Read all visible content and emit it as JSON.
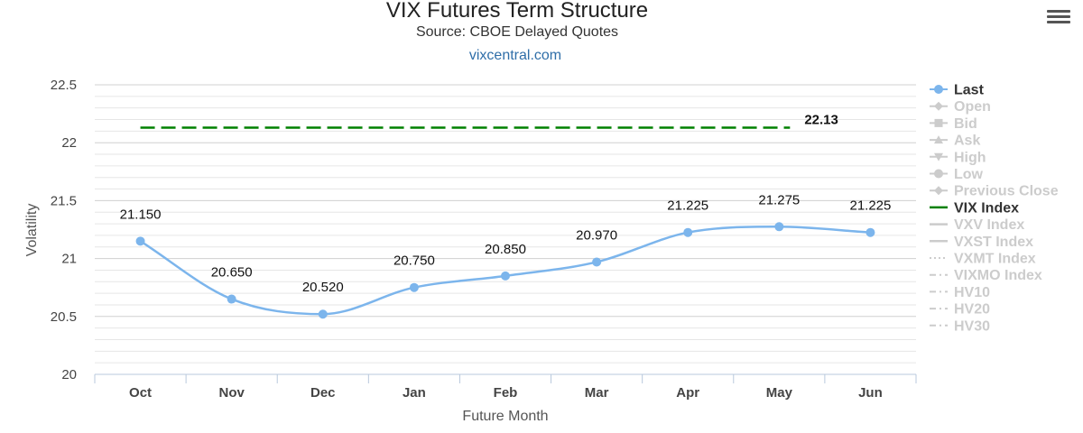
{
  "header": {
    "title": "VIX Futures Term Structure",
    "subtitle": "Source: CBOE Delayed Quotes",
    "link": "vixcentral.com"
  },
  "menu": {
    "icon": "hamburger-menu-icon"
  },
  "chart_data": {
    "type": "line",
    "title": "VIX Futures Term Structure",
    "subtitle": "Source: CBOE Delayed Quotes",
    "xlabel": "Future Month",
    "ylabel": "Volatility",
    "categories": [
      "Oct",
      "Nov",
      "Dec",
      "Jan",
      "Feb",
      "Mar",
      "Apr",
      "May",
      "Jun"
    ],
    "ylim": [
      20,
      22.5
    ],
    "yticks": [
      "22.5",
      "22",
      "21.5",
      "21",
      "20.5",
      "20"
    ],
    "grid": true,
    "legend_position": "right",
    "series": [
      {
        "name": "Last",
        "values": [
          21.15,
          20.65,
          20.52,
          20.75,
          20.85,
          20.97,
          21.225,
          21.275,
          21.225
        ],
        "labels": [
          "21.150",
          "20.650",
          "20.520",
          "20.750",
          "20.850",
          "20.970",
          "21.225",
          "21.275",
          "21.225"
        ],
        "color": "#7cb5ec",
        "style": "smooth-line-markers"
      },
      {
        "name": "VIX Index",
        "value": 22.13,
        "label": "22.13",
        "color": "#008000",
        "style": "dashed"
      }
    ],
    "legend": [
      {
        "name": "Last",
        "color": "#7cb5ec",
        "active": true,
        "symbol": "circle"
      },
      {
        "name": "Open",
        "color": "#cccccc",
        "active": false,
        "symbol": "diamond"
      },
      {
        "name": "Bid",
        "color": "#cccccc",
        "active": false,
        "symbol": "square"
      },
      {
        "name": "Ask",
        "color": "#cccccc",
        "active": false,
        "symbol": "triangle"
      },
      {
        "name": "High",
        "color": "#cccccc",
        "active": false,
        "symbol": "triangle-down"
      },
      {
        "name": "Low",
        "color": "#cccccc",
        "active": false,
        "symbol": "circle"
      },
      {
        "name": "Previous Close",
        "color": "#cccccc",
        "active": false,
        "symbol": "diamond"
      },
      {
        "name": "VIX Index",
        "color": "#008000",
        "active": true,
        "symbol": "line"
      },
      {
        "name": "VXV Index",
        "color": "#cccccc",
        "active": false,
        "symbol": "line"
      },
      {
        "name": "VXST Index",
        "color": "#cccccc",
        "active": false,
        "symbol": "line"
      },
      {
        "name": "VXMT Index",
        "color": "#cccccc",
        "active": false,
        "symbol": "dotted"
      },
      {
        "name": "VIXMO Index",
        "color": "#cccccc",
        "active": false,
        "symbol": "dashdot"
      },
      {
        "name": "HV10",
        "color": "#cccccc",
        "active": false,
        "symbol": "dashdot"
      },
      {
        "name": "HV20",
        "color": "#cccccc",
        "active": false,
        "symbol": "dashdot"
      },
      {
        "name": "HV30",
        "color": "#cccccc",
        "active": false,
        "symbol": "dashdot"
      }
    ]
  }
}
